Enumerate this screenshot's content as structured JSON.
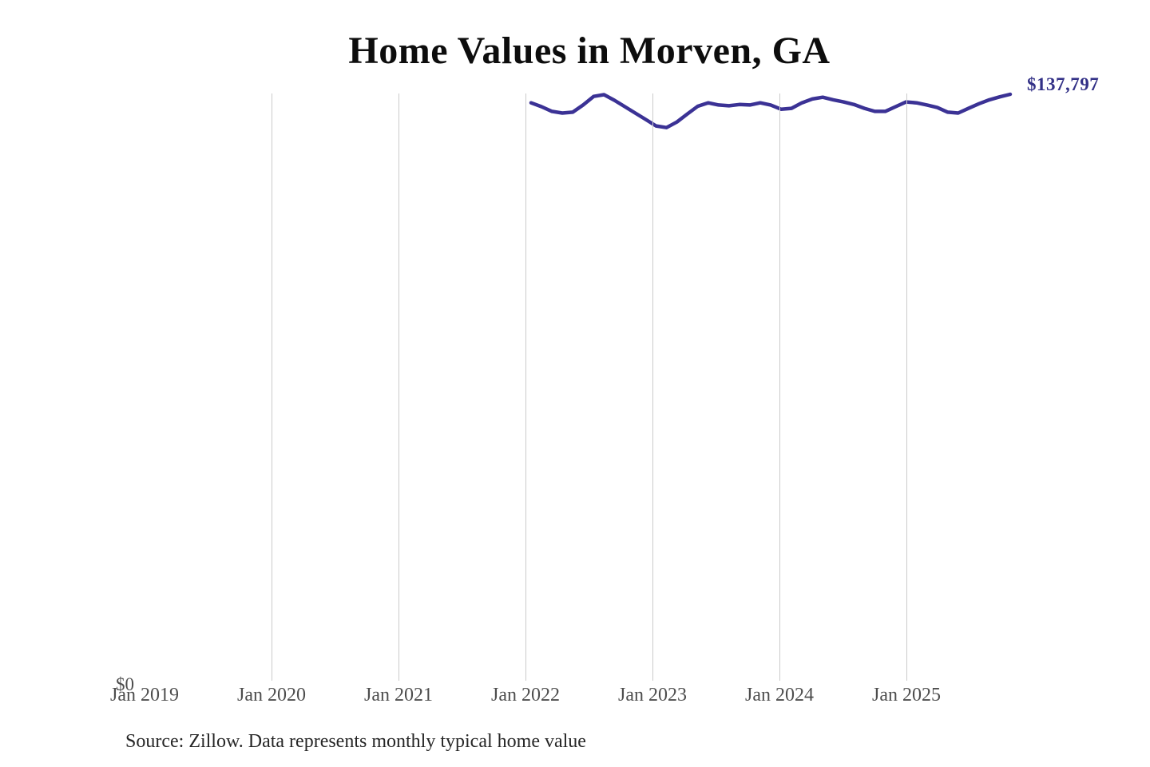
{
  "header": {
    "title": "Home Values in Morven, GA"
  },
  "chart": {
    "latest_value_label": "$137,797",
    "y_zero_label": "$0",
    "colors": {
      "line": "#3b3295",
      "latest_value": "#333187",
      "gridline": "#cbcbcb",
      "axis_label": "#4d4d4d",
      "title": "#0d0d0d",
      "source": "#262626",
      "background": "#ffffff"
    }
  },
  "footer": {
    "source_note": "Source: Zillow. Data represents monthly typical home value"
  },
  "chart_data": {
    "type": "line",
    "title": "Home Values in Morven, GA",
    "x_tick_labels": [
      "Jan 2019",
      "Jan 2020",
      "Jan 2021",
      "Jan 2022",
      "Jan 2023",
      "Jan 2024",
      "Jan 2025"
    ],
    "gridlines_at": [
      "Jan 2020",
      "Jan 2021",
      "Jan 2022",
      "Jan 2023",
      "Jan 2024",
      "Jan 2025"
    ],
    "x": [
      "Jan 2022",
      "Feb 2022",
      "Mar 2022",
      "Apr 2022",
      "May 2022",
      "Jun 2022",
      "Jul 2022",
      "Aug 2022",
      "Sep 2022",
      "Oct 2022",
      "Nov 2022",
      "Dec 2022",
      "Jan 2023",
      "Feb 2023",
      "Mar 2023",
      "Apr 2023",
      "May 2023",
      "Jun 2023",
      "Jul 2023",
      "Aug 2023",
      "Sep 2023",
      "Oct 2023",
      "Nov 2023",
      "Dec 2023",
      "Jan 2024",
      "Feb 2024",
      "Mar 2024",
      "Apr 2024",
      "May 2024",
      "Jun 2024",
      "Jul 2024",
      "Aug 2024",
      "Sep 2024",
      "Oct 2024",
      "Nov 2024",
      "Dec 2024",
      "Jan 2025",
      "Feb 2025",
      "Mar 2025",
      "Apr 2025",
      "May 2025",
      "Jun 2025",
      "Jul 2025",
      "Aug 2025",
      "Sep 2025",
      "Oct 2025",
      "Nov 2025"
    ],
    "values": [
      135800,
      134900,
      133800,
      133400,
      133600,
      135300,
      137300,
      137700,
      136400,
      134900,
      133400,
      131900,
      130400,
      130000,
      131300,
      133200,
      135000,
      135800,
      135300,
      135100,
      135400,
      135300,
      135800,
      135300,
      134300,
      134500,
      135800,
      136700,
      137100,
      136500,
      136000,
      135400,
      134500,
      133800,
      133800,
      134900,
      136000,
      135800,
      135300,
      134700,
      133600,
      133400,
      134500,
      135600,
      136500,
      137200,
      137797
    ],
    "end_annotation": "$137,797",
    "ylabel": "",
    "xlabel": "",
    "ylim": [
      0,
      138000
    ],
    "y_axis_visible_label": "$0",
    "legend": "none",
    "grid": "vertical year gridlines only, no gridline at Jan 2019"
  }
}
